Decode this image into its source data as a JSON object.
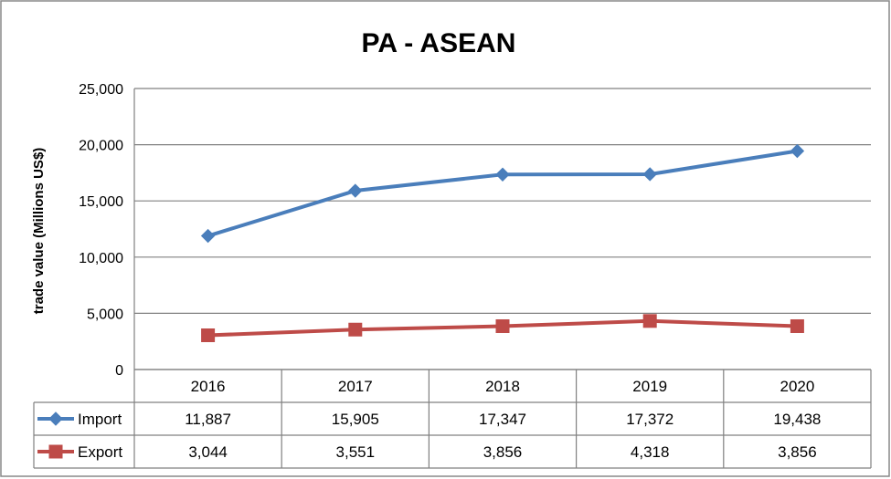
{
  "chart_data": {
    "type": "line",
    "title": "PA - ASEAN",
    "xlabel": "",
    "ylabel": "trade value (Millions US$)",
    "categories": [
      "2016",
      "2017",
      "2018",
      "2019",
      "2020"
    ],
    "yticks": [
      "0",
      "5,000",
      "10,000",
      "15,000",
      "20,000",
      "25,000"
    ],
    "ylim": [
      0,
      25000
    ],
    "grid": true,
    "legend": "data-table",
    "series": [
      {
        "name": "Import",
        "values": [
          11887,
          15905,
          17347,
          17372,
          19438
        ],
        "labels": [
          "11,887",
          "15,905",
          "17,347",
          "17,372",
          "19,438"
        ],
        "color": "#4a7ebb",
        "marker": "diamond"
      },
      {
        "name": "Export",
        "values": [
          3044,
          3551,
          3856,
          4318,
          3856
        ],
        "labels": [
          "3,044",
          "3,551",
          "3,856",
          "4,318",
          "3,856"
        ],
        "color": "#be4b48",
        "marker": "square"
      }
    ]
  }
}
